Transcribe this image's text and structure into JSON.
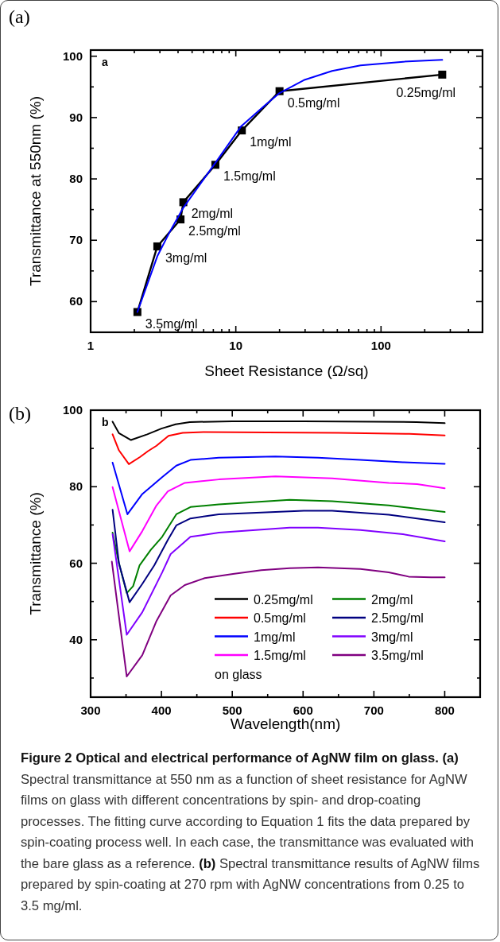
{
  "chart_data": [
    {
      "type": "line",
      "title": "(a)",
      "xlabel": "Sheet Resistance (Ω/sq)",
      "ylabel": "Transmittance at 550nm (%)",
      "log": "x",
      "grid": false,
      "legend": false,
      "xlim": [
        1,
        500
      ],
      "ylim": [
        55,
        101
      ],
      "xticks": [
        1,
        {
          "value": 2,
          "label": null
        },
        {
          "value": 3,
          "label": null
        },
        {
          "value": 4,
          "label": null
        },
        {
          "value": 5,
          "label": null
        },
        {
          "value": 6,
          "label": null
        },
        {
          "value": 7,
          "label": null
        },
        {
          "value": 8,
          "label": null
        },
        {
          "value": 9,
          "label": null
        },
        10,
        {
          "value": 20,
          "label": null
        },
        {
          "value": 30,
          "label": null
        },
        {
          "value": 40,
          "label": null
        },
        {
          "value": 50,
          "label": null
        },
        {
          "value": 60,
          "label": null
        },
        {
          "value": 70,
          "label": null
        },
        {
          "value": 80,
          "label": null
        },
        {
          "value": 90,
          "label": null
        },
        100,
        {
          "value": 200,
          "label": null
        },
        {
          "value": 300,
          "label": null
        },
        {
          "value": 400,
          "label": null
        }
      ],
      "yticks": [
        60,
        {
          "value": 65,
          "label": null
        },
        70,
        {
          "value": 75,
          "label": null
        },
        80,
        {
          "value": 85,
          "label": null
        },
        90,
        {
          "value": 95,
          "label": null
        },
        100
      ],
      "series": [
        {
          "color": "#000000",
          "marker": "square",
          "x": [
            2.1,
            2.88,
            4.16,
            4.35,
            7.23,
            11.0,
            20.0,
            264
          ],
          "values": [
            58.3,
            69.0,
            73.4,
            76.2,
            82.3,
            87.9,
            94.3,
            97.0
          ]
        },
        {
          "color": "#0000ff",
          "marker": "none",
          "x": [
            2.1,
            2.88,
            3.55,
            4.35,
            5.82,
            7.63,
            10.9,
            15.7,
            20.0,
            29.4,
            46.0,
            72.3,
            142,
            264
          ],
          "values": [
            58.3,
            67.4,
            71.6,
            75.3,
            79.5,
            83.4,
            88.6,
            91.9,
            94.0,
            96.1,
            97.6,
            98.5,
            99.1,
            99.4
          ]
        }
      ],
      "annotations": [
        "a",
        {
          "text": "3.5mg/ml",
          "x": 2.1,
          "y": 58.3
        },
        {
          "text": "3mg/ml",
          "x": 2.88,
          "y": 69.0
        },
        {
          "text": "2.5mg/ml",
          "x": 4.16,
          "y": 73.4
        },
        {
          "text": "2mg/ml",
          "x": 4.35,
          "y": 76.2
        },
        {
          "text": "1.5mg/ml",
          "x": 7.23,
          "y": 82.3
        },
        {
          "text": "1mg/ml",
          "x": 11.0,
          "y": 87.9
        },
        {
          "text": "0.5mg/ml",
          "x": 20.0,
          "y": 94.3
        },
        {
          "text": "0.25mg/ml",
          "x": 264,
          "y": 97.0
        }
      ]
    },
    {
      "type": "line",
      "title": "(b)",
      "xlabel": "Wavelength(nm)",
      "ylabel": "Transmittance (%)",
      "grid": false,
      "legend": "bottom right",
      "legend_title": "on glass",
      "marker": "none",
      "xlim": [
        300,
        850
      ],
      "ylim": [
        25,
        100
      ],
      "xticks": [
        300,
        {
          "value": 350,
          "label": null
        },
        400,
        {
          "value": 450,
          "label": null
        },
        500,
        {
          "value": 550,
          "label": null
        },
        600,
        {
          "value": 650,
          "label": null
        },
        700,
        {
          "value": 750,
          "label": null
        },
        800
      ],
      "yticks": [
        {
          "value": 30,
          "label": null
        },
        40,
        {
          "value": 50,
          "label": null
        },
        60,
        {
          "value": 70,
          "label": null
        },
        80,
        {
          "value": 90,
          "label": null
        },
        100
      ],
      "series": [
        {
          "name": "0.25mg/ml",
          "color": "#000000",
          "x": [
            331,
            340,
            357,
            380,
            400,
            420,
            440,
            500,
            600,
            700,
            760,
            800
          ],
          "values": [
            97,
            94,
            92.2,
            93.7,
            95.2,
            96.3,
            96.9,
            97.1,
            97.1,
            97,
            96.9,
            96.6
          ]
        },
        {
          "name": "0.5mg/ml",
          "color": "#ff0000",
          "x": [
            331,
            340,
            354,
            370,
            381,
            393,
            410,
            430,
            460,
            550,
            650,
            750,
            800
          ],
          "values": [
            93.7,
            89.5,
            85.9,
            87.8,
            89.3,
            90.7,
            93.3,
            94.1,
            94.3,
            94.2,
            94.1,
            93.8,
            93.4
          ]
        },
        {
          "name": "1mg/ml",
          "color": "#0000ff",
          "x": [
            331,
            352,
            373,
            401,
            421,
            441,
            481,
            561,
            621,
            681,
            741,
            800
          ],
          "values": [
            86.3,
            72.8,
            78.1,
            82.5,
            85.5,
            87.0,
            87.6,
            87.9,
            87.6,
            87.0,
            86.4,
            86.0
          ]
        },
        {
          "name": "1.5mg/ml",
          "color": "#ff00ff",
          "x": [
            331,
            355,
            373,
            393,
            409,
            433,
            481,
            561,
            641,
            721,
            761,
            800
          ],
          "values": [
            79.9,
            63.1,
            68.4,
            75.1,
            78.8,
            81.0,
            81.9,
            82.7,
            82.2,
            81.0,
            80.7,
            79.6
          ]
        },
        {
          "name": "2mg/ml",
          "color": "#008000",
          "x": [
            331,
            340,
            351,
            360,
            369,
            385,
            401,
            421,
            441,
            481,
            581,
            641,
            721,
            800
          ],
          "values": [
            68,
            60,
            52.2,
            54,
            59.4,
            63.5,
            66.9,
            72.8,
            74.7,
            75.4,
            76.6,
            76.2,
            75.1,
            73.4
          ]
        },
        {
          "name": "2.5mg/ml",
          "color": "#000080",
          "x": [
            331,
            340,
            355,
            373,
            390,
            409,
            421,
            441,
            481,
            601,
            641,
            721,
            800
          ],
          "values": [
            74,
            60,
            49.8,
            54.6,
            59.5,
            66.1,
            69.9,
            71.7,
            72.8,
            73.7,
            73.7,
            72.7,
            70.7
          ]
        },
        {
          "name": "3mg/ml",
          "color": "#8000ff",
          "x": [
            331,
            351,
            373,
            401,
            413,
            441,
            481,
            581,
            621,
            681,
            741,
            800
          ],
          "values": [
            67.6,
            41.3,
            47.2,
            57.6,
            62.4,
            66.9,
            68.0,
            69.3,
            69.3,
            68.7,
            67.6,
            65.7
          ]
        },
        {
          "name": "3.5mg/ml",
          "color": "#800080",
          "x": [
            330,
            351,
            373,
            393,
            413,
            433,
            461,
            501,
            541,
            581,
            621,
            681,
            721,
            749,
            781,
            800
          ],
          "values": [
            60.4,
            30.4,
            36.0,
            44.9,
            51.6,
            54.3,
            56.1,
            57.2,
            58.2,
            58.7,
            58.9,
            58.5,
            57.6,
            56.5,
            56.3,
            56.3
          ]
        }
      ],
      "annotations": [
        "b",
        "Figure 2 Optical and electrical performance of AgNW film on glass. (a)",
        "Spectral transmittance at 550 nm as a function of sheet resistance for AgNW films on glass with different concentrations by spin- and drop-coating processes. The fitting curve according to Equation 1 fits the data prepared by spin-coating process well. In each case, the transmittance was evaluated with the bare glass as a reference.",
        "(b)",
        "Spectral transmittance results of AgNW films prepared by spin-coating at 270 rpm with AgNW concentrations from 0.25 to 3.5 mg/ml."
      ]
    }
  ]
}
